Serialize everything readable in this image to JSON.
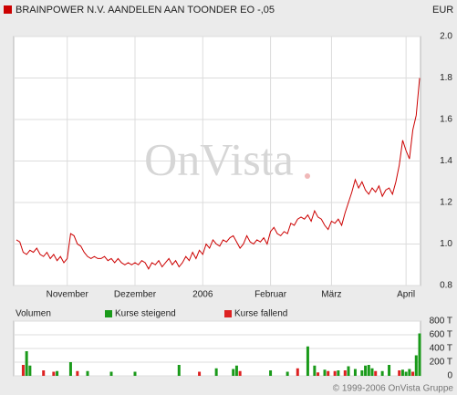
{
  "header": {
    "title": "BRAINPOWER N.V. AANDELEN AAN TOONDER EO -,05",
    "currency": "EUR"
  },
  "footer": "© 1999-2006 OnVista Gruppe",
  "chart_data": [
    {
      "type": "line",
      "watermark": "OnVista",
      "color": "#cc0000",
      "grid": true,
      "xlim": [
        0,
        119
      ],
      "xticks": [
        {
          "value": 15,
          "label": "November"
        },
        {
          "value": 35,
          "label": "Dezember"
        },
        {
          "value": 55,
          "label": "2006"
        },
        {
          "value": 75,
          "label": "Februar"
        },
        {
          "value": 93,
          "label": "März"
        },
        {
          "value": 115,
          "label": "April"
        }
      ],
      "ylim": [
        0.8,
        2.0
      ],
      "yticks": [
        0.8,
        {
          "value": 1,
          "label": "1.0"
        },
        1.2,
        1.4,
        1.6,
        1.8,
        {
          "value": 2,
          "label": "2.0"
        }
      ],
      "values": [
        1.02,
        1.01,
        0.96,
        0.95,
        0.97,
        0.96,
        0.98,
        0.95,
        0.94,
        0.96,
        0.93,
        0.95,
        0.92,
        0.94,
        0.91,
        0.93,
        1.05,
        1.04,
        1.0,
        0.99,
        0.96,
        0.94,
        0.93,
        0.94,
        0.93,
        0.93,
        0.94,
        0.92,
        0.93,
        0.91,
        0.93,
        0.91,
        0.9,
        0.91,
        0.9,
        0.91,
        0.9,
        0.92,
        0.91,
        0.88,
        0.91,
        0.9,
        0.92,
        0.89,
        0.91,
        0.93,
        0.9,
        0.92,
        0.89,
        0.91,
        0.94,
        0.92,
        0.96,
        0.93,
        0.97,
        0.95,
        1.0,
        0.98,
        1.02,
        1.0,
        0.99,
        1.02,
        1.01,
        1.03,
        1.04,
        1.01,
        0.98,
        1.0,
        1.04,
        1.01,
        1.0,
        1.02,
        1.01,
        1.03,
        1.0,
        1.06,
        1.08,
        1.05,
        1.04,
        1.06,
        1.05,
        1.1,
        1.09,
        1.12,
        1.13,
        1.12,
        1.14,
        1.11,
        1.16,
        1.13,
        1.12,
        1.09,
        1.07,
        1.11,
        1.1,
        1.12,
        1.09,
        1.15,
        1.2,
        1.25,
        1.31,
        1.27,
        1.3,
        1.26,
        1.24,
        1.27,
        1.25,
        1.28,
        1.23,
        1.26,
        1.27,
        1.24,
        1.3,
        1.38,
        1.5,
        1.45,
        1.41,
        1.55,
        1.62,
        1.8
      ]
    },
    {
      "type": "bar",
      "title": "Volumen",
      "grid": true,
      "xlim": [
        0,
        119
      ],
      "ylim": [
        0,
        800
      ],
      "yticks": [
        0,
        {
          "value": 200,
          "label": "200 T"
        },
        {
          "value": 400,
          "label": "400 T"
        },
        {
          "value": 600,
          "label": "600 T"
        },
        {
          "value": 800,
          "label": "800 T"
        }
      ],
      "series": [
        {
          "name": "Kurse steigend",
          "color": "#1a9a1a",
          "values": [
            null,
            null,
            null,
            360,
            150,
            null,
            null,
            null,
            null,
            null,
            null,
            null,
            70,
            null,
            null,
            null,
            200,
            null,
            null,
            null,
            null,
            70,
            null,
            null,
            null,
            null,
            null,
            null,
            60,
            null,
            null,
            null,
            null,
            null,
            null,
            60,
            null,
            null,
            null,
            null,
            null,
            null,
            null,
            null,
            null,
            null,
            null,
            null,
            160,
            null,
            null,
            null,
            null,
            null,
            null,
            null,
            null,
            null,
            null,
            110,
            null,
            null,
            null,
            null,
            100,
            150,
            null,
            null,
            null,
            null,
            null,
            null,
            null,
            null,
            null,
            80,
            null,
            null,
            null,
            null,
            60,
            null,
            null,
            null,
            null,
            null,
            430,
            null,
            150,
            null,
            null,
            90,
            null,
            null,
            null,
            80,
            null,
            null,
            140,
            null,
            100,
            null,
            80,
            150,
            160,
            110,
            null,
            null,
            70,
            null,
            160,
            null,
            null,
            null,
            90,
            60,
            100,
            null,
            300,
            620
          ]
        },
        {
          "name": "Kurse fallend",
          "color": "#dd2222",
          "values": [
            null,
            null,
            160,
            null,
            null,
            null,
            null,
            null,
            80,
            null,
            null,
            60,
            null,
            null,
            null,
            null,
            null,
            null,
            70,
            null,
            null,
            null,
            null,
            null,
            null,
            null,
            null,
            null,
            null,
            null,
            null,
            null,
            null,
            null,
            null,
            null,
            null,
            null,
            null,
            null,
            null,
            null,
            null,
            null,
            null,
            null,
            null,
            null,
            null,
            null,
            null,
            null,
            null,
            null,
            60,
            null,
            null,
            null,
            null,
            null,
            null,
            null,
            null,
            null,
            null,
            null,
            70,
            null,
            null,
            null,
            null,
            null,
            null,
            null,
            null,
            null,
            null,
            null,
            null,
            null,
            null,
            null,
            null,
            110,
            null,
            null,
            null,
            null,
            null,
            50,
            null,
            null,
            70,
            null,
            70,
            null,
            null,
            80,
            null,
            null,
            null,
            null,
            null,
            null,
            null,
            null,
            70,
            null,
            null,
            null,
            null,
            null,
            null,
            80,
            null,
            null,
            null,
            60,
            null,
            null
          ]
        }
      ]
    }
  ]
}
